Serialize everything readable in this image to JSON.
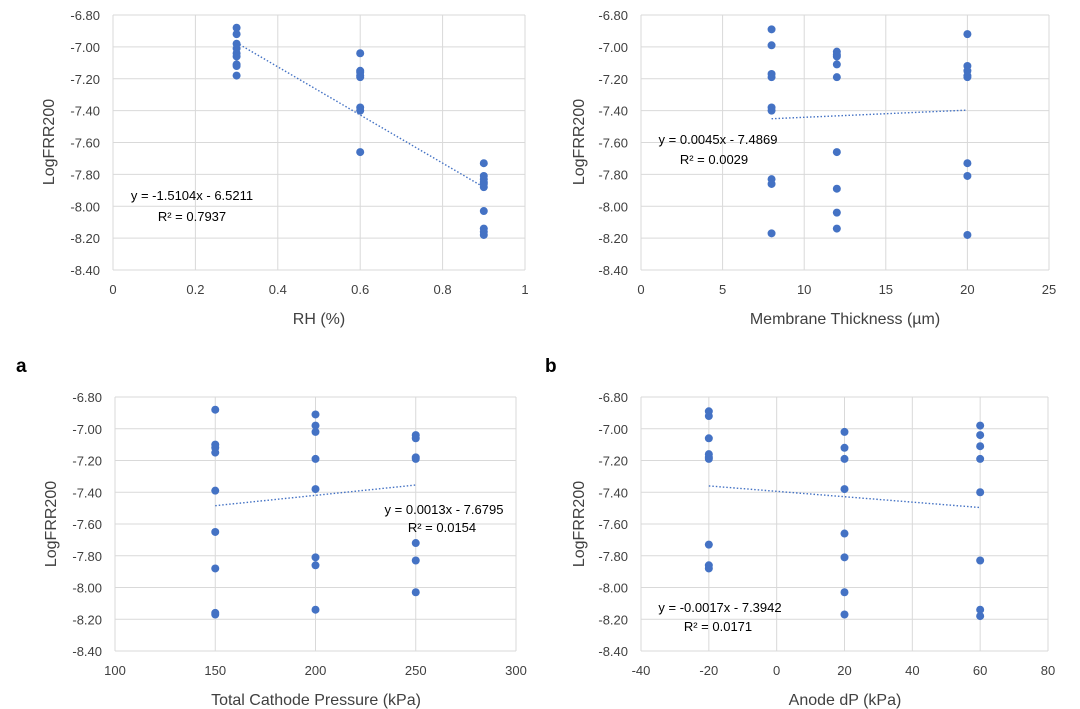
{
  "panel_letters": [
    "a",
    "b"
  ],
  "chart_data": [
    {
      "type": "scatter",
      "xlabel": "RH (%)",
      "ylabel": "LogFRR200",
      "xlim": [
        0,
        1
      ],
      "ylim": [
        -8.4,
        -6.8
      ],
      "x_ticks": [
        0,
        0.2,
        0.4,
        0.6,
        0.8,
        1
      ],
      "x_tick_labels": [
        "0",
        "0.2",
        "0.4",
        "0.6",
        "0.8",
        "1"
      ],
      "y_ticks": [
        -6.8,
        -7.0,
        -7.2,
        -7.4,
        -7.6,
        -7.8,
        -8.0,
        -8.2,
        -8.4
      ],
      "y_tick_labels": [
        "-6.80",
        "-7.00",
        "-7.20",
        "-7.40",
        "-7.60",
        "-7.80",
        "-8.00",
        "-8.20",
        "-8.40"
      ],
      "grid": true,
      "color": "#4472C4",
      "points": [
        [
          0.3,
          -6.88
        ],
        [
          0.3,
          -6.92
        ],
        [
          0.3,
          -6.98
        ],
        [
          0.3,
          -7.01
        ],
        [
          0.3,
          -7.04
        ],
        [
          0.3,
          -7.06
        ],
        [
          0.3,
          -7.11
        ],
        [
          0.3,
          -7.12
        ],
        [
          0.3,
          -7.18
        ],
        [
          0.6,
          -7.04
        ],
        [
          0.6,
          -7.15
        ],
        [
          0.6,
          -7.16
        ],
        [
          0.6,
          -7.18
        ],
        [
          0.6,
          -7.19
        ],
        [
          0.6,
          -7.38
        ],
        [
          0.6,
          -7.4
        ],
        [
          0.6,
          -7.66
        ],
        [
          0.9,
          -7.73
        ],
        [
          0.9,
          -7.81
        ],
        [
          0.9,
          -7.83
        ],
        [
          0.9,
          -7.85
        ],
        [
          0.9,
          -7.86
        ],
        [
          0.9,
          -7.88
        ],
        [
          0.9,
          -8.03
        ],
        [
          0.9,
          -8.14
        ],
        [
          0.9,
          -8.16
        ],
        [
          0.9,
          -8.18
        ]
      ],
      "trendline": {
        "slope": -1.5104,
        "intercept": -6.5211,
        "x_range": [
          0.3,
          0.9
        ]
      },
      "equation": "y = -1.5104x  - 6.5211",
      "r2": "R² = 0.7937",
      "annotation_position": "lower-left"
    },
    {
      "type": "scatter",
      "xlabel": "Membrane Thickness (µm)",
      "ylabel": "LogFRR200",
      "xlim": [
        0,
        25
      ],
      "ylim": [
        -8.4,
        -6.8
      ],
      "x_ticks": [
        0,
        5,
        10,
        15,
        20,
        25
      ],
      "x_tick_labels": [
        "0",
        "5",
        "10",
        "15",
        "20",
        "25"
      ],
      "y_ticks": [
        -6.8,
        -7.0,
        -7.2,
        -7.4,
        -7.6,
        -7.8,
        -8.0,
        -8.2,
        -8.4
      ],
      "y_tick_labels": [
        "-6.80",
        "-7.00",
        "-7.20",
        "-7.40",
        "-7.60",
        "-7.80",
        "-8.00",
        "-8.20",
        "-8.40"
      ],
      "grid": true,
      "color": "#4472C4",
      "points": [
        [
          8,
          -6.89
        ],
        [
          8,
          -6.99
        ],
        [
          8,
          -7.17
        ],
        [
          8,
          -7.19
        ],
        [
          8,
          -7.38
        ],
        [
          8,
          -7.4
        ],
        [
          8,
          -7.83
        ],
        [
          8,
          -7.86
        ],
        [
          8,
          -8.17
        ],
        [
          12,
          -7.03
        ],
        [
          12,
          -7.05
        ],
        [
          12,
          -7.06
        ],
        [
          12,
          -7.11
        ],
        [
          12,
          -7.19
        ],
        [
          12,
          -7.66
        ],
        [
          12,
          -7.89
        ],
        [
          12,
          -8.04
        ],
        [
          12,
          -8.14
        ],
        [
          20,
          -6.92
        ],
        [
          20,
          -7.12
        ],
        [
          20,
          -7.15
        ],
        [
          20,
          -7.18
        ],
        [
          20,
          -7.19
        ],
        [
          20,
          -7.73
        ],
        [
          20,
          -7.81
        ],
        [
          20,
          -8.18
        ]
      ],
      "trendline": {
        "slope": 0.0045,
        "intercept": -7.4869,
        "x_range": [
          8,
          20
        ]
      },
      "equation": "y = 0.0045x  - 7.4869",
      "r2": "R² = 0.0029",
      "annotation_position": "middle-left"
    },
    {
      "type": "scatter",
      "xlabel": "Total Cathode Pressure (kPa)",
      "ylabel": "LogFRR200",
      "xlim": [
        100,
        300
      ],
      "ylim": [
        -8.4,
        -6.8
      ],
      "x_ticks": [
        100,
        150,
        200,
        250,
        300
      ],
      "x_tick_labels": [
        "100",
        "150",
        "200",
        "250",
        "300"
      ],
      "y_ticks": [
        -6.8,
        -7.0,
        -7.2,
        -7.4,
        -7.6,
        -7.8,
        -8.0,
        -8.2,
        -8.4
      ],
      "y_tick_labels": [
        "-6.80",
        "-7.00",
        "-7.20",
        "-7.40",
        "-7.60",
        "-7.80",
        "-8.00",
        "-8.20",
        "-8.40"
      ],
      "grid": true,
      "color": "#4472C4",
      "points": [
        [
          150,
          -6.88
        ],
        [
          150,
          -7.1
        ],
        [
          150,
          -7.12
        ],
        [
          150,
          -7.15
        ],
        [
          150,
          -7.39
        ],
        [
          150,
          -7.65
        ],
        [
          150,
          -7.88
        ],
        [
          150,
          -8.16
        ],
        [
          150,
          -8.17
        ],
        [
          200,
          -6.91
        ],
        [
          200,
          -6.98
        ],
        [
          200,
          -7.02
        ],
        [
          200,
          -7.19
        ],
        [
          200,
          -7.38
        ],
        [
          200,
          -7.81
        ],
        [
          200,
          -7.86
        ],
        [
          200,
          -8.14
        ],
        [
          250,
          -7.04
        ],
        [
          250,
          -7.06
        ],
        [
          250,
          -7.18
        ],
        [
          250,
          -7.19
        ],
        [
          250,
          -7.72
        ],
        [
          250,
          -7.83
        ],
        [
          250,
          -8.03
        ]
      ],
      "trendline": {
        "slope": 0.0013,
        "intercept": -7.6795,
        "x_range": [
          150,
          250
        ]
      },
      "equation": "y = 0.0013x  - 7.6795",
      "r2": "R² = 0.0154",
      "annotation_position": "middle-right"
    },
    {
      "type": "scatter",
      "xlabel": "Anode dP (kPa)",
      "ylabel": "LogFRR200",
      "xlim": [
        -40,
        80
      ],
      "ylim": [
        -8.4,
        -6.8
      ],
      "x_ticks": [
        -40,
        -20,
        0,
        20,
        40,
        60,
        80
      ],
      "x_tick_labels": [
        "-40",
        "-20",
        "0",
        "20",
        "40",
        "60",
        "80"
      ],
      "y_ticks": [
        -6.8,
        -7.0,
        -7.2,
        -7.4,
        -7.6,
        -7.8,
        -8.0,
        -8.2,
        -8.4
      ],
      "y_tick_labels": [
        "-6.80",
        "-7.00",
        "-7.20",
        "-7.40",
        "-7.60",
        "-7.80",
        "-8.00",
        "-8.20",
        "-8.40"
      ],
      "grid": true,
      "color": "#4472C4",
      "points": [
        [
          -20,
          -6.89
        ],
        [
          -20,
          -6.92
        ],
        [
          -20,
          -7.06
        ],
        [
          -20,
          -7.16
        ],
        [
          -20,
          -7.18
        ],
        [
          -20,
          -7.19
        ],
        [
          -20,
          -7.73
        ],
        [
          -20,
          -7.86
        ],
        [
          -20,
          -7.88
        ],
        [
          20,
          -7.02
        ],
        [
          20,
          -7.12
        ],
        [
          20,
          -7.19
        ],
        [
          20,
          -7.38
        ],
        [
          20,
          -7.66
        ],
        [
          20,
          -7.81
        ],
        [
          20,
          -8.03
        ],
        [
          20,
          -8.17
        ],
        [
          60,
          -6.98
        ],
        [
          60,
          -7.04
        ],
        [
          60,
          -7.11
        ],
        [
          60,
          -7.19
        ],
        [
          60,
          -7.4
        ],
        [
          60,
          -7.83
        ],
        [
          60,
          -8.14
        ],
        [
          60,
          -8.18
        ]
      ],
      "trendline": {
        "slope": -0.0017,
        "intercept": -7.3942,
        "x_range": [
          -20,
          60
        ]
      },
      "equation": "y = -0.0017x  - 7.3942",
      "r2": "R² = 0.0171",
      "annotation_position": "lower-left"
    }
  ]
}
